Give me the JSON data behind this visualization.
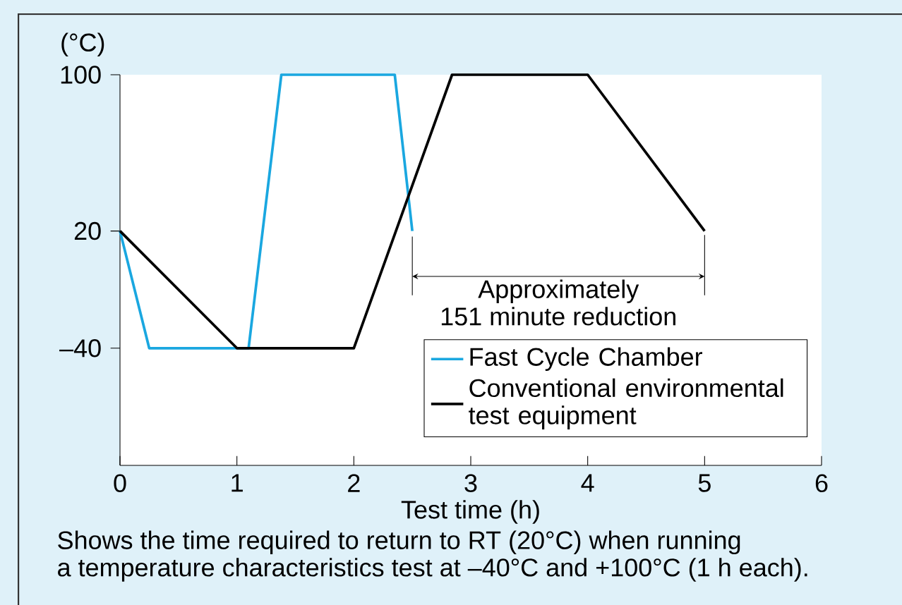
{
  "chart_data": {
    "type": "line",
    "xlabel": "Test time (h)",
    "ylabel": "(°C)",
    "xlim": [
      0,
      6
    ],
    "xticks": [
      0,
      1,
      2,
      3,
      4,
      5,
      6
    ],
    "ylim": [
      -100,
      100
    ],
    "yticks": [
      {
        "value": -40,
        "label": "–40"
      },
      20,
      100
    ],
    "series": [
      {
        "name": "Fast Cycle Chamber",
        "color": "#1aa7e0",
        "x": [
          0,
          0.25,
          1.1,
          1.38,
          2.35,
          2.5
        ],
        "values": [
          20,
          -40,
          -40,
          100,
          100,
          20
        ]
      },
      {
        "name": "Conventional environmental test equipment",
        "color": "#000000",
        "x": [
          0,
          1,
          2,
          2.84,
          4,
          5
        ],
        "values": [
          20,
          -40,
          -40,
          100,
          100,
          20
        ]
      }
    ],
    "legend": "bottom right",
    "grid": false,
    "line_style": "solid",
    "marker": "none",
    "annotations": [
      {
        "text": "Approximately 151 minute reduction",
        "x": 2.5,
        "y": 20
      },
      "Shows the time required to return to RT (20°C) when running a temperature characteristics test at –40°C and +100°C (1 h each)."
    ]
  }
}
